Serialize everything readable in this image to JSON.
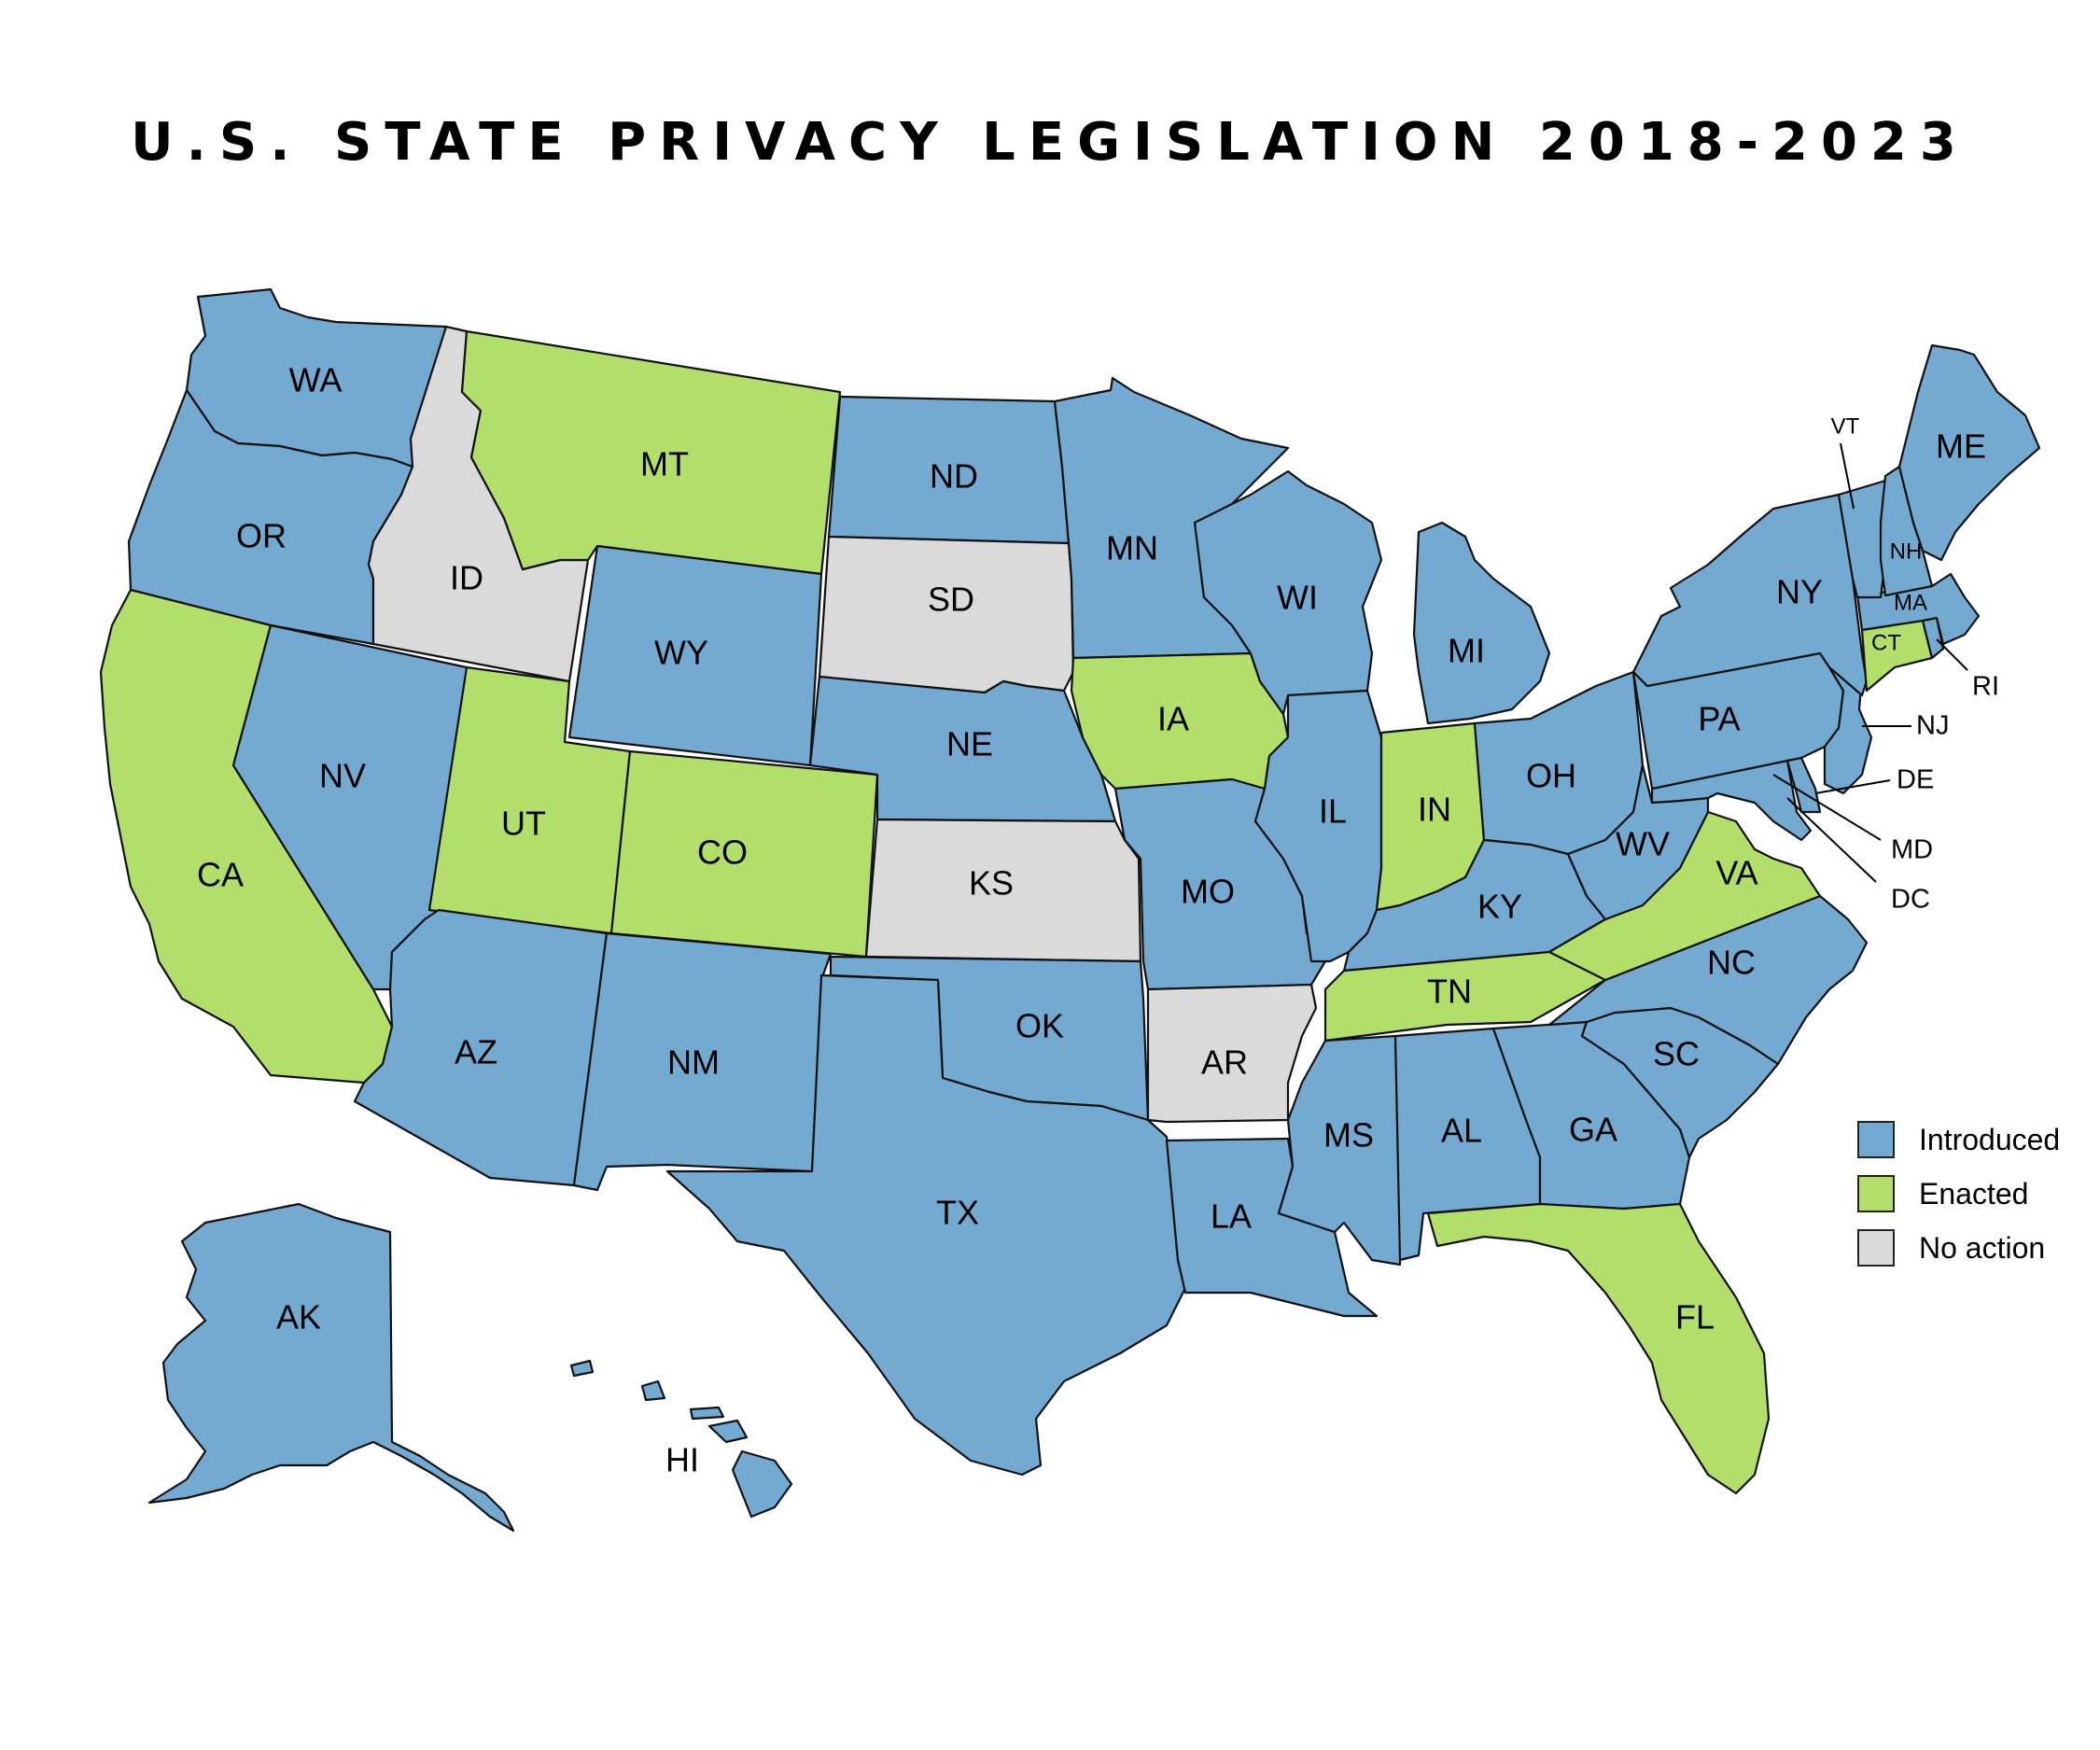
{
  "title": "U.S. STATE PRIVACY LEGISLATION 2018-2023",
  "colors": {
    "introduced": "#74a9d2",
    "enacted": "#b2de6b",
    "no_action": "#dadada"
  },
  "legend": [
    {
      "key": "introduced",
      "label": "Introduced"
    },
    {
      "key": "enacted",
      "label": "Enacted"
    },
    {
      "key": "no_action",
      "label": "No action"
    }
  ],
  "states": {
    "WA": {
      "label": "WA",
      "status": "introduced"
    },
    "OR": {
      "label": "OR",
      "status": "introduced"
    },
    "CA": {
      "label": "CA",
      "status": "enacted"
    },
    "ID": {
      "label": "ID",
      "status": "no_action"
    },
    "NV": {
      "label": "NV",
      "status": "introduced"
    },
    "MT": {
      "label": "MT",
      "status": "enacted"
    },
    "WY": {
      "label": "WY",
      "status": "introduced"
    },
    "UT": {
      "label": "UT",
      "status": "enacted"
    },
    "AZ": {
      "label": "AZ",
      "status": "introduced"
    },
    "CO": {
      "label": "CO",
      "status": "enacted"
    },
    "NM": {
      "label": "NM",
      "status": "introduced"
    },
    "ND": {
      "label": "ND",
      "status": "introduced"
    },
    "SD": {
      "label": "SD",
      "status": "no_action"
    },
    "NE": {
      "label": "NE",
      "status": "introduced"
    },
    "KS": {
      "label": "KS",
      "status": "no_action"
    },
    "OK": {
      "label": "OK",
      "status": "introduced"
    },
    "TX": {
      "label": "TX",
      "status": "introduced"
    },
    "MN": {
      "label": "MN",
      "status": "introduced"
    },
    "IA": {
      "label": "IA",
      "status": "enacted"
    },
    "MO": {
      "label": "MO",
      "status": "introduced"
    },
    "AR": {
      "label": "AR",
      "status": "no_action"
    },
    "LA": {
      "label": "LA",
      "status": "introduced"
    },
    "WI": {
      "label": "WI",
      "status": "introduced"
    },
    "IL": {
      "label": "IL",
      "status": "introduced"
    },
    "MI": {
      "label": "MI",
      "status": "introduced"
    },
    "IN": {
      "label": "IN",
      "status": "enacted"
    },
    "OH": {
      "label": "OH",
      "status": "introduced"
    },
    "KY": {
      "label": "KY",
      "status": "introduced"
    },
    "TN": {
      "label": "TN",
      "status": "enacted"
    },
    "MS": {
      "label": "MS",
      "status": "introduced"
    },
    "AL": {
      "label": "AL",
      "status": "introduced"
    },
    "GA": {
      "label": "GA",
      "status": "introduced"
    },
    "FL": {
      "label": "FL",
      "status": "enacted"
    },
    "SC": {
      "label": "SC",
      "status": "introduced"
    },
    "NC": {
      "label": "NC",
      "status": "introduced"
    },
    "VA": {
      "label": "VA",
      "status": "enacted"
    },
    "WV": {
      "label": "WV",
      "status": "introduced"
    },
    "MD": {
      "label": "MD",
      "status": "introduced"
    },
    "DE": {
      "label": "DE",
      "status": "introduced"
    },
    "DC": {
      "label": "DC",
      "status": "introduced"
    },
    "PA": {
      "label": "PA",
      "status": "introduced"
    },
    "NJ": {
      "label": "NJ",
      "status": "introduced"
    },
    "NY": {
      "label": "NY",
      "status": "introduced"
    },
    "CT": {
      "label": "CT",
      "status": "enacted"
    },
    "RI": {
      "label": "RI",
      "status": "introduced"
    },
    "MA": {
      "label": "MA",
      "status": "introduced"
    },
    "VT": {
      "label": "VT",
      "status": "introduced"
    },
    "NH": {
      "label": "NH",
      "status": "introduced"
    },
    "ME": {
      "label": "ME",
      "status": "introduced"
    },
    "AK": {
      "label": "AK",
      "status": "introduced"
    },
    "HI": {
      "label": "HI",
      "status": "introduced"
    }
  }
}
